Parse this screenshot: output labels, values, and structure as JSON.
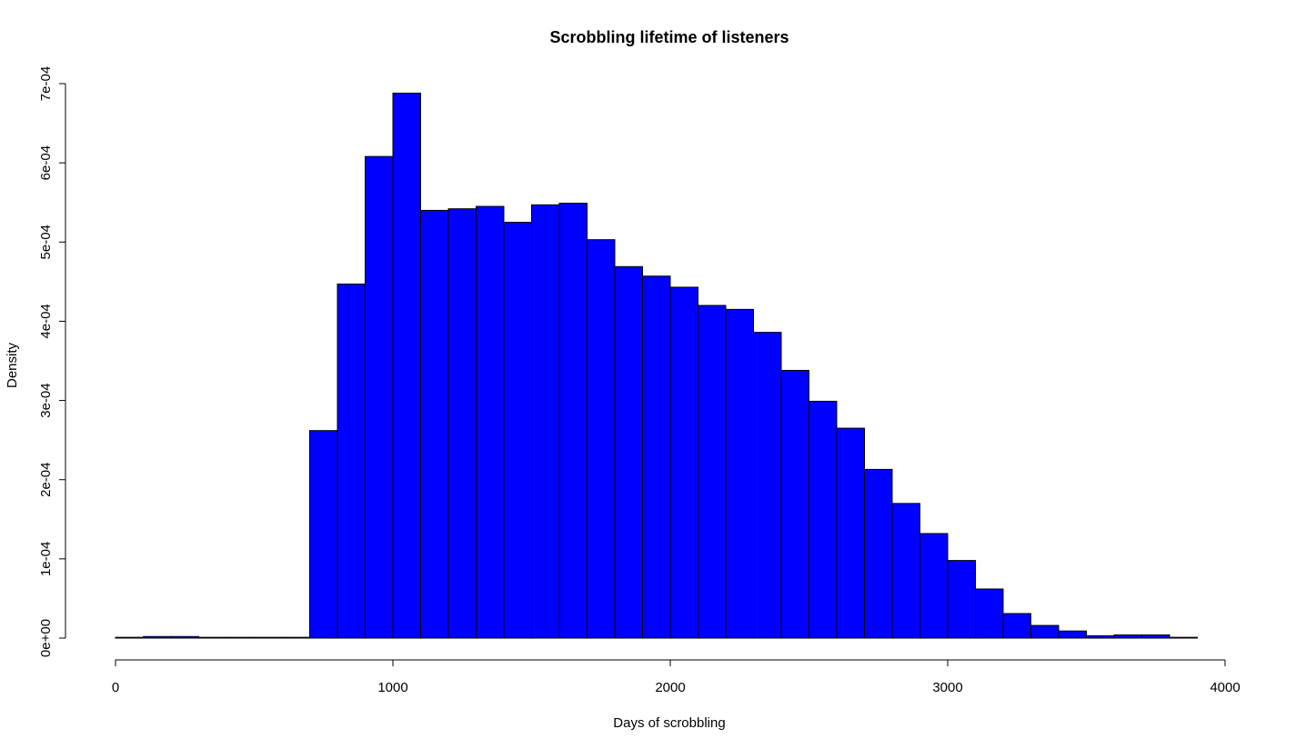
{
  "chart_data": {
    "type": "bar",
    "title": "Scrobbling lifetime of listeners",
    "xlabel": "Days of scrobbling",
    "ylabel": "Density",
    "xlim": [
      0,
      4000
    ],
    "ylim": [
      0,
      0.0007
    ],
    "x_ticks": [
      0,
      1000,
      2000,
      3000,
      4000
    ],
    "x_tick_labels": [
      "0",
      "1000",
      "2000",
      "3000",
      "4000"
    ],
    "y_ticks": [
      0,
      0.0001,
      0.0002,
      0.0003,
      0.0004,
      0.0005,
      0.0006,
      0.0007
    ],
    "y_tick_labels": [
      "0e+00",
      "1e-04",
      "2e-04",
      "3e-04",
      "4e-04",
      "5e-04",
      "6e-04",
      "7e-04"
    ],
    "bin_edges": [
      0,
      100,
      200,
      300,
      400,
      500,
      600,
      700,
      800,
      900,
      1000,
      1100,
      1200,
      1300,
      1400,
      1500,
      1600,
      1700,
      1800,
      1900,
      2000,
      2100,
      2200,
      2300,
      2400,
      2500,
      2600,
      2700,
      2800,
      2900,
      3000,
      3100,
      3200,
      3300,
      3400,
      3500,
      3600,
      3700,
      3800,
      3900,
      4000
    ],
    "values": [
      1e-06,
      2e-06,
      2e-06,
      1e-06,
      1e-06,
      1e-06,
      1e-06,
      0.000262,
      0.000447,
      0.000608,
      0.000688,
      0.00054,
      0.000542,
      0.000545,
      0.000525,
      0.000547,
      0.000549,
      0.000503,
      0.000469,
      0.000457,
      0.000443,
      0.00042,
      0.000415,
      0.000386,
      0.000338,
      0.000299,
      0.000265,
      0.000213,
      0.00017,
      0.000132,
      9.8e-05,
      6.2e-05,
      3.1e-05,
      1.6e-05,
      9e-06,
      3e-06,
      4e-06,
      4e-06,
      1e-06,
      0.0
    ],
    "bar_color": "#0000ff",
    "bar_border_color": "#000000",
    "grid": false,
    "legend": "none"
  }
}
